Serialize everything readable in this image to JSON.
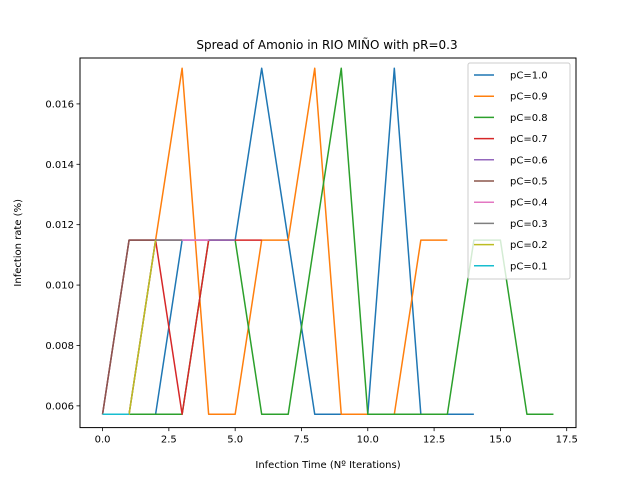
{
  "chart_data": {
    "type": "line",
    "title": "Spread of Amonio in RIO MIÑO with pR=0.3",
    "xlabel": "Infection Time (Nº Iterations)",
    "ylabel": "Infection rate (%)",
    "xlim": [
      -0.85,
      17.85
    ],
    "ylim": [
      0.00528,
      0.01752
    ],
    "xticks": [
      0.0,
      2.5,
      5.0,
      7.5,
      10.0,
      12.5,
      15.0,
      17.5
    ],
    "xtick_labels": [
      "0.0",
      "2.5",
      "5.0",
      "7.5",
      "10.0",
      "12.5",
      "15.0",
      "17.5"
    ],
    "yticks": [
      0.006,
      0.008,
      0.01,
      0.012,
      0.014,
      0.016
    ],
    "ytick_labels": [
      "0.006",
      "0.008",
      "0.010",
      "0.012",
      "0.014",
      "0.016"
    ],
    "grid": false,
    "legend_position": "top-right",
    "series": [
      {
        "name": "pC=1.0",
        "color": "#1f77b4",
        "x": [
          0,
          1,
          2,
          3,
          4,
          5,
          6,
          7,
          8,
          9,
          10,
          11,
          12,
          13,
          14
        ],
        "y": [
          0.00572,
          0.00572,
          0.00572,
          0.01149,
          0.01149,
          0.01149,
          0.01718,
          0.01149,
          0.00572,
          0.00572,
          0.00572,
          0.01718,
          0.00572,
          0.00572,
          0.00572
        ]
      },
      {
        "name": "pC=0.9",
        "color": "#ff7f0e",
        "x": [
          0,
          1,
          2,
          3,
          4,
          5,
          6,
          7,
          8,
          9,
          10,
          11,
          12,
          13
        ],
        "y": [
          0.00572,
          0.00572,
          0.01149,
          0.01718,
          0.00572,
          0.00572,
          0.01149,
          0.01149,
          0.01718,
          0.00572,
          0.00572,
          0.00572,
          0.01149,
          0.01149
        ]
      },
      {
        "name": "pC=0.8",
        "color": "#2ca02c",
        "x": [
          0,
          1,
          2,
          3,
          4,
          5,
          6,
          7,
          8,
          9,
          10,
          11,
          12,
          13,
          14,
          15,
          16,
          17
        ],
        "y": [
          0.00572,
          0.00572,
          0.00572,
          0.00572,
          0.01149,
          0.01149,
          0.00572,
          0.00572,
          0.01149,
          0.01718,
          0.00572,
          0.00572,
          0.00572,
          0.00572,
          0.01149,
          0.01149,
          0.00572,
          0.00572
        ]
      },
      {
        "name": "pC=0.7",
        "color": "#d62728",
        "x": [
          0,
          1,
          2,
          3,
          4,
          5,
          6
        ],
        "y": [
          0.00572,
          0.01149,
          0.01149,
          0.00572,
          0.01149,
          0.01149,
          0.01149
        ]
      },
      {
        "name": "pC=0.6",
        "color": "#9467bd",
        "x": [
          0,
          1,
          2,
          3,
          4,
          5
        ],
        "y": [
          0.00572,
          0.01149,
          0.01149,
          0.01149,
          0.01149,
          0.01149
        ]
      },
      {
        "name": "pC=0.5",
        "color": "#8c564b",
        "x": [
          0,
          1,
          2,
          3
        ],
        "y": [
          0.00572,
          0.01149,
          0.01149,
          0.01149
        ]
      },
      {
        "name": "pC=0.4",
        "color": "#e377c2",
        "x": [
          0,
          1,
          2,
          3,
          4
        ],
        "y": [
          0.00572,
          0.00572,
          0.01149,
          0.01149,
          0.01149
        ]
      },
      {
        "name": "pC=0.3",
        "color": "#7f7f7f",
        "x": [
          0,
          1,
          2,
          3
        ],
        "y": [
          0.00572,
          0.00572,
          0.01149,
          0.01149
        ]
      },
      {
        "name": "pC=0.2",
        "color": "#bcbd22",
        "x": [
          0,
          1,
          2
        ],
        "y": [
          0.00572,
          0.00572,
          0.01149
        ]
      },
      {
        "name": "pC=0.1",
        "color": "#17becf",
        "x": [
          0,
          1
        ],
        "y": [
          0.00572,
          0.00572
        ]
      }
    ]
  }
}
